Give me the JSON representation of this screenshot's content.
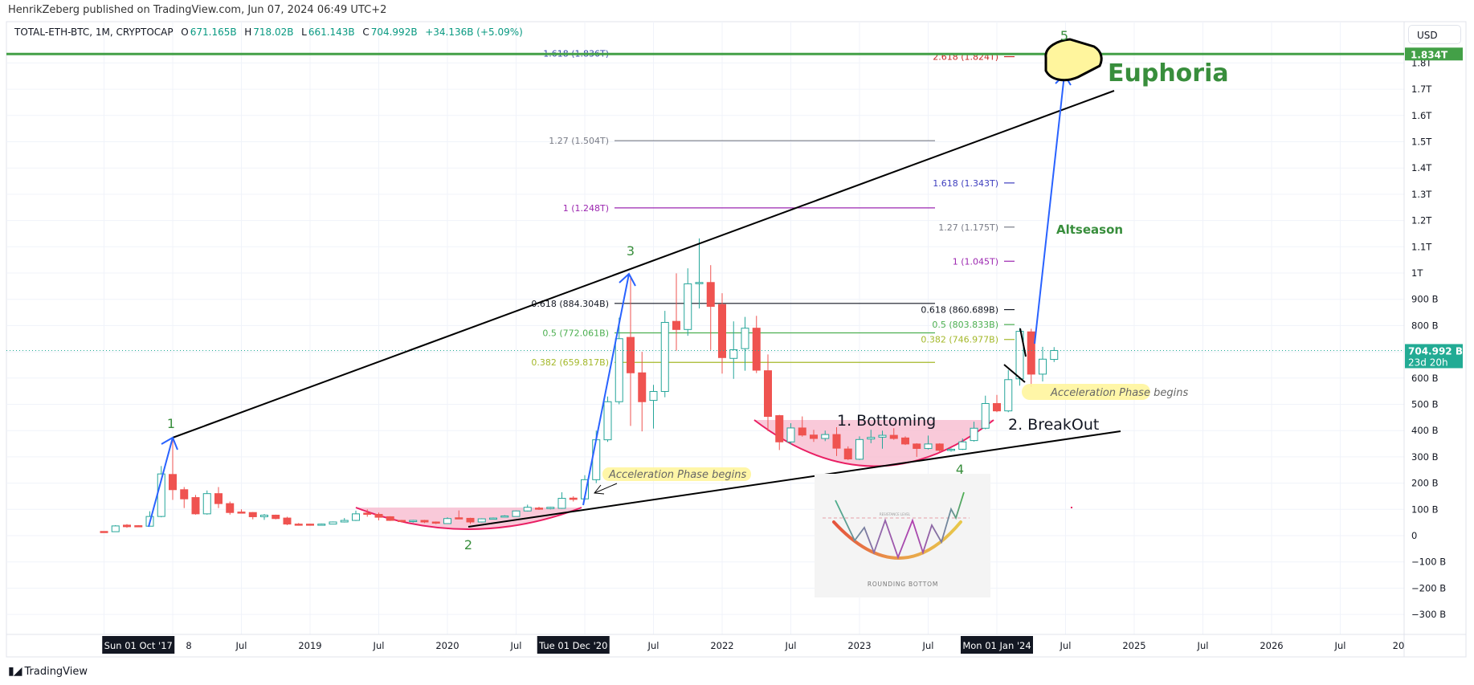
{
  "header": {
    "published": "HenrikZeberg published on TradingView.com, Jun 07, 2024 06:49 UTC+2",
    "symbol": "TOTAL-ETH-BTC, 1M, CRYPTOCAP",
    "o_label": "O",
    "o_value": "671.165B",
    "h_label": "H",
    "h_value": "718.02B",
    "l_label": "L",
    "l_value": "661.143B",
    "c_label": "C",
    "c_value": "704.992B",
    "change": "+34.136B (+5.09%)"
  },
  "price_axis": {
    "currency": "USD",
    "ticks": [
      {
        "v": 1800,
        "label": "1.8T"
      },
      {
        "v": 1700,
        "label": "1.7T"
      },
      {
        "v": 1600,
        "label": "1.6T"
      },
      {
        "v": 1500,
        "label": "1.5T"
      },
      {
        "v": 1400,
        "label": "1.4T"
      },
      {
        "v": 1300,
        "label": "1.3T"
      },
      {
        "v": 1200,
        "label": "1.2T"
      },
      {
        "v": 1100,
        "label": "1.1T"
      },
      {
        "v": 1000,
        "label": "1T"
      },
      {
        "v": 900,
        "label": "900 B"
      },
      {
        "v": 800,
        "label": "800 B"
      },
      {
        "v": 600,
        "label": "600 B"
      },
      {
        "v": 500,
        "label": "500 B"
      },
      {
        "v": 400,
        "label": "400 B"
      },
      {
        "v": 300,
        "label": "300 B"
      },
      {
        "v": 200,
        "label": "200 B"
      },
      {
        "v": 100,
        "label": "100 B"
      },
      {
        "v": 0,
        "label": "0"
      },
      {
        "v": -100,
        "label": "−100 B"
      },
      {
        "v": -200,
        "label": "−200 B"
      },
      {
        "v": -300,
        "label": "−300 B"
      }
    ],
    "level_line": {
      "v": 1834,
      "label": "1.834T",
      "color": "#43a047"
    },
    "last_price": {
      "v": 704.992,
      "label": "704.992 B",
      "countdown": "23d 20h",
      "color": "#22ab94"
    }
  },
  "time_axis": {
    "ticks": [
      {
        "date": "2018-07",
        "label": "Jul"
      },
      {
        "date": "2019-01",
        "label": "2019"
      },
      {
        "date": "2019-07",
        "label": "Jul"
      },
      {
        "date": "2020-01",
        "label": "2020"
      },
      {
        "date": "2020-07",
        "label": "Jul"
      },
      {
        "date": "2021-07",
        "label": "Jul"
      },
      {
        "date": "2022-01",
        "label": "2022"
      },
      {
        "date": "2022-07",
        "label": "Jul"
      },
      {
        "date": "2023-01",
        "label": "2023"
      },
      {
        "date": "2023-07",
        "label": "Jul"
      },
      {
        "date": "2024-07",
        "label": "Jul"
      },
      {
        "date": "2025-01",
        "label": "2025"
      },
      {
        "date": "2025-07",
        "label": "Jul"
      },
      {
        "date": "2026-01",
        "label": "2026"
      },
      {
        "date": "2026-07",
        "label": "Jul"
      },
      {
        "date": "2027-01",
        "label": "20"
      }
    ],
    "tick_18": {
      "date": "2018-01",
      "label": "8"
    },
    "highlights": [
      {
        "date": "2017-10",
        "label": "Sun 01 Oct '17"
      },
      {
        "date": "2020-12",
        "label": "Tue 01 Dec '20"
      },
      {
        "date": "2024-01",
        "label": "Mon 01 Jan '24"
      }
    ]
  },
  "chart_data": {
    "type": "candlestick",
    "units": "B USD",
    "interval": "1M",
    "grid": true,
    "ylim": [
      -340,
      1900
    ],
    "xlim": [
      "2017-01",
      "2027-01"
    ],
    "up_color": "#26a69a",
    "down_color": "#ef5350",
    "columns": [
      "date",
      "open",
      "high",
      "low",
      "close"
    ],
    "candles": [
      [
        "2017-07",
        16,
        17,
        13,
        15
      ],
      [
        "2017-08",
        15,
        40,
        14,
        37
      ],
      [
        "2017-09",
        40,
        44,
        30,
        34
      ],
      [
        "2017-10",
        38,
        40,
        35,
        36
      ],
      [
        "2017-11",
        36,
        93,
        35,
        73
      ],
      [
        "2017-12",
        73,
        265,
        70,
        235
      ],
      [
        "2018-01",
        233,
        368,
        136,
        175
      ],
      [
        "2018-02",
        175,
        185,
        105,
        140
      ],
      [
        "2018-03",
        145,
        155,
        80,
        83
      ],
      [
        "2018-04",
        83,
        172,
        80,
        160
      ],
      [
        "2018-05",
        160,
        185,
        105,
        122
      ],
      [
        "2018-06",
        122,
        130,
        80,
        88
      ],
      [
        "2018-07",
        90,
        100,
        86,
        88
      ],
      [
        "2018-08",
        88,
        90,
        62,
        72
      ],
      [
        "2018-09",
        72,
        82,
        60,
        78
      ],
      [
        "2018-10",
        78,
        80,
        62,
        65
      ],
      [
        "2018-11",
        67,
        72,
        40,
        44
      ],
      [
        "2018-12",
        44,
        48,
        38,
        42
      ],
      [
        "2019-01",
        44,
        45,
        38,
        40
      ],
      [
        "2019-02",
        40,
        46,
        39,
        44
      ],
      [
        "2019-03",
        44,
        54,
        43,
        52
      ],
      [
        "2019-04",
        52,
        67,
        50,
        58
      ],
      [
        "2019-05",
        58,
        95,
        56,
        83
      ],
      [
        "2019-06",
        86,
        100,
        72,
        81
      ],
      [
        "2019-07",
        81,
        88,
        58,
        70
      ],
      [
        "2019-08",
        72,
        74,
        56,
        58
      ],
      [
        "2019-09",
        58,
        60,
        50,
        54
      ],
      [
        "2019-10",
        54,
        60,
        50,
        58
      ],
      [
        "2019-11",
        58,
        60,
        48,
        52
      ],
      [
        "2019-12",
        52,
        54,
        44,
        48
      ],
      [
        "2020-01",
        46,
        70,
        45,
        65
      ],
      [
        "2020-02",
        68,
        96,
        64,
        66
      ],
      [
        "2020-03",
        66,
        68,
        45,
        52
      ],
      [
        "2020-04",
        52,
        66,
        50,
        64
      ],
      [
        "2020-05",
        65,
        69,
        62,
        67
      ],
      [
        "2020-06",
        73,
        78,
        70,
        75
      ],
      [
        "2020-07",
        73,
        96,
        72,
        94
      ],
      [
        "2020-08",
        94,
        118,
        92,
        108
      ],
      [
        "2020-09",
        105,
        110,
        98,
        103
      ],
      [
        "2020-10",
        103,
        110,
        100,
        108
      ],
      [
        "2020-11",
        104,
        165,
        102,
        142
      ],
      [
        "2020-12",
        143,
        150,
        130,
        138
      ],
      [
        "2021-01",
        140,
        230,
        135,
        213
      ],
      [
        "2021-02",
        213,
        400,
        200,
        365
      ],
      [
        "2021-03",
        365,
        530,
        357,
        510
      ],
      [
        "2021-04",
        510,
        830,
        500,
        750
      ],
      [
        "2021-05",
        755,
        990,
        418,
        620
      ],
      [
        "2021-06",
        620,
        700,
        397,
        510
      ],
      [
        "2021-07",
        515,
        574,
        408,
        549
      ],
      [
        "2021-08",
        549,
        856,
        527,
        812
      ],
      [
        "2021-09",
        816,
        999,
        704,
        785
      ],
      [
        "2021-10",
        785,
        1018,
        761,
        959
      ],
      [
        "2021-11",
        961,
        1132,
        865,
        964
      ],
      [
        "2021-12",
        964,
        1030,
        707,
        873
      ],
      [
        "2022-01",
        880,
        923,
        617,
        678
      ],
      [
        "2022-02",
        675,
        816,
        597,
        708
      ],
      [
        "2022-03",
        712,
        833,
        628,
        790
      ],
      [
        "2022-04",
        790,
        837,
        619,
        630
      ],
      [
        "2022-05",
        628,
        690,
        398,
        454
      ],
      [
        "2022-06",
        457,
        460,
        326,
        357
      ],
      [
        "2022-07",
        357,
        428,
        347,
        410
      ],
      [
        "2022-08",
        410,
        454,
        377,
        383
      ],
      [
        "2022-09",
        383,
        403,
        357,
        370
      ],
      [
        "2022-10",
        370,
        400,
        360,
        385
      ],
      [
        "2022-11",
        385,
        413,
        303,
        333
      ],
      [
        "2022-12",
        330,
        340,
        288,
        292
      ],
      [
        "2023-01",
        291,
        378,
        288,
        366
      ],
      [
        "2023-02",
        368,
        403,
        352,
        374
      ],
      [
        "2023-03",
        375,
        400,
        331,
        382
      ],
      [
        "2023-04",
        382,
        409,
        365,
        370
      ],
      [
        "2023-05",
        372,
        378,
        345,
        349
      ],
      [
        "2023-06",
        349,
        352,
        300,
        332
      ],
      [
        "2023-07",
        332,
        381,
        328,
        349
      ],
      [
        "2023-08",
        349,
        352,
        318,
        325
      ],
      [
        "2023-09",
        327,
        332,
        320,
        329
      ],
      [
        "2023-10",
        329,
        370,
        326,
        357
      ],
      [
        "2023-11",
        362,
        434,
        358,
        409
      ],
      [
        "2023-12",
        409,
        533,
        405,
        503
      ],
      [
        "2024-01",
        503,
        536,
        470,
        475
      ],
      [
        "2024-02",
        475,
        631,
        470,
        594
      ],
      [
        "2024-03",
        597,
        791,
        571,
        778
      ],
      [
        "2024-04",
        776,
        788,
        566,
        615
      ],
      [
        "2024-05",
        615,
        719,
        587,
        672
      ],
      [
        "2024-06",
        671.165,
        718.02,
        661.143,
        704.992
      ]
    ],
    "fib_left": [
      {
        "label": "1.618 (1.836T)",
        "v": 1836,
        "color": "#3949ab",
        "line": false
      },
      {
        "label": "1.27 (1.504T)",
        "v": 1504,
        "color": "#787b86",
        "line": true
      },
      {
        "label": "1 (1.248T)",
        "v": 1248,
        "color": "#9c27b0",
        "line": true
      },
      {
        "label": "0.618 (884.304B)",
        "v": 884.304,
        "color": "#131722",
        "line": true
      },
      {
        "label": "0.5 (772.061B)",
        "v": 772.061,
        "color": "#4caf50",
        "line": true
      },
      {
        "label": "0.382 (659.817B)",
        "v": 659.817,
        "color": "#a4b82a",
        "line": true
      }
    ],
    "fib_right": [
      {
        "label": "2.618 (1.824T)",
        "v": 1824,
        "color": "#c62828"
      },
      {
        "label": "1.618 (1.343T)",
        "v": 1343,
        "color": "#3f3fbf"
      },
      {
        "label": "1.27 (1.175T)",
        "v": 1175,
        "color": "#787b86"
      },
      {
        "label": "1 (1.045T)",
        "v": 1045,
        "color": "#9c27b0"
      },
      {
        "label": "0.618 (860.689B)",
        "v": 860.689,
        "color": "#131722"
      },
      {
        "label": "0.5 (803.833B)",
        "v": 803.833,
        "color": "#4caf50"
      },
      {
        "label": "0.382 (746.977B)",
        "v": 746.977,
        "color": "#a4b82a"
      }
    ]
  },
  "annotations": {
    "wave_1": "1",
    "wave_2": "2",
    "wave_3": "3",
    "wave_4": "4",
    "wave_5": "5",
    "euphoria": "Euphoria",
    "altseason": "Altseason",
    "bottoming": "1. Bottoming",
    "breakout": "2. BreakOut",
    "accel_left": "Acceleration Phase begins",
    "accel_right": "Acceleration Phase begins",
    "inset_title": "ROUNDING BOTTOM",
    "inset_resistance": "RESISTANCE LEVEL",
    "wave_color": "#388e3c",
    "trend_color": "#000000",
    "arrow_color": "#2962ff",
    "bottom_color": "#e91e63"
  },
  "footer": {
    "brand": "TradingView"
  }
}
